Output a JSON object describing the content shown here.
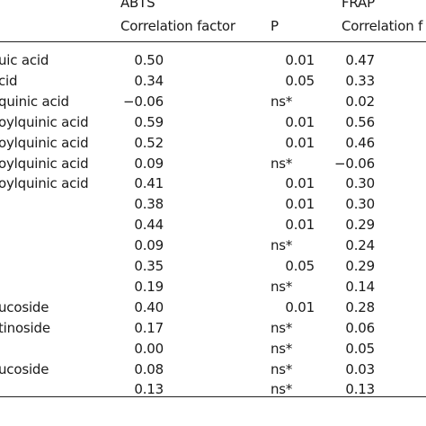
{
  "table": {
    "group_headers": [
      "ABTS",
      "FRAP"
    ],
    "sub_headers": [
      "Correlation factor",
      "P",
      "Correlation f"
    ],
    "rows": [
      {
        "compound": "uic acid",
        "abts_r": "0.50",
        "abts_p": "0.01",
        "frap_r": "0.47"
      },
      {
        "compound": "cid",
        "abts_r": "0.34",
        "abts_p": "0.05",
        "frap_r": "0.33"
      },
      {
        "compound": "quinic acid",
        "abts_r": "−0.06",
        "abts_p": "ns*",
        "frap_r": "0.02"
      },
      {
        "compound": "oylquinic acid",
        "abts_r": "0.59",
        "abts_p": "0.01",
        "frap_r": "0.56"
      },
      {
        "compound": "oylquinic acid",
        "abts_r": "0.52",
        "abts_p": "0.01",
        "frap_r": "0.46"
      },
      {
        "compound": "oylquinic acid",
        "abts_r": "0.09",
        "abts_p": "ns*",
        "frap_r": "−0.06"
      },
      {
        "compound": "oylquinic acid",
        "abts_r": "0.41",
        "abts_p": "0.01",
        "frap_r": "0.30"
      },
      {
        "compound": "",
        "abts_r": "0.38",
        "abts_p": "0.01",
        "frap_r": "0.30"
      },
      {
        "compound": "",
        "abts_r": "0.44",
        "abts_p": "0.01",
        "frap_r": "0.29"
      },
      {
        "compound": "",
        "abts_r": "0.09",
        "abts_p": "ns*",
        "frap_r": "0.24"
      },
      {
        "compound": "",
        "abts_r": "0.35",
        "abts_p": "0.05",
        "frap_r": "0.29"
      },
      {
        "compound": "",
        "abts_r": "0.19",
        "abts_p": "ns*",
        "frap_r": "0.14"
      },
      {
        "compound": "ucoside",
        "abts_r": "0.40",
        "abts_p": "0.01",
        "frap_r": "0.28"
      },
      {
        "compound": "tinoside",
        "abts_r": "0.17",
        "abts_p": "ns*",
        "frap_r": "0.06"
      },
      {
        "compound": "",
        "abts_r": "0.00",
        "abts_p": "ns*",
        "frap_r": "0.05"
      },
      {
        "compound": "ucoside",
        "abts_r": "0.08",
        "abts_p": "ns*",
        "frap_r": "0.03"
      },
      {
        "compound": "",
        "abts_r": "0.13",
        "abts_p": "ns*",
        "frap_r": "0.13"
      }
    ]
  }
}
